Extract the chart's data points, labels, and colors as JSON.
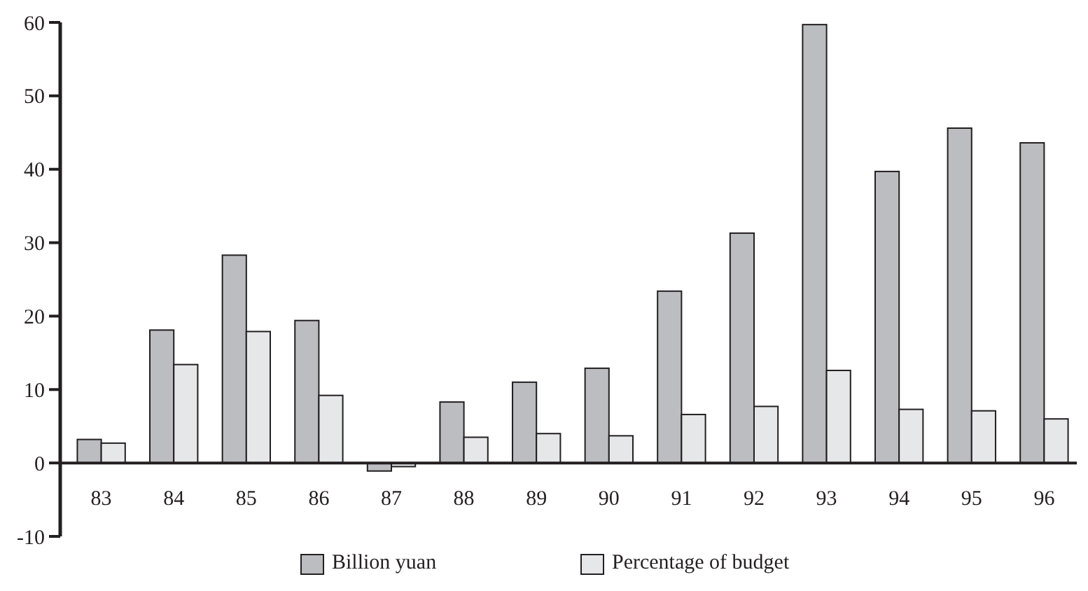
{
  "chart_data": {
    "type": "bar",
    "categories": [
      "83",
      "84",
      "85",
      "86",
      "87",
      "88",
      "89",
      "90",
      "91",
      "92",
      "93",
      "94",
      "95",
      "96"
    ],
    "series": [
      {
        "name": "Billion yuan",
        "color": "#bcbdc1",
        "values": [
          3.2,
          18.1,
          28.3,
          19.4,
          -1.1,
          8.3,
          11.0,
          12.9,
          23.4,
          31.3,
          59.7,
          39.7,
          45.6,
          43.6
        ]
      },
      {
        "name": "Percentage of budget",
        "color": "#e6e7e9",
        "values": [
          2.7,
          13.4,
          17.9,
          9.2,
          -0.5,
          3.5,
          4.0,
          3.7,
          6.6,
          7.7,
          12.6,
          7.3,
          7.1,
          6.0
        ]
      }
    ],
    "ylim": [
      -10,
      60
    ],
    "yticks": [
      -10,
      0,
      10,
      20,
      30,
      40,
      50,
      60
    ],
    "grid": false,
    "legend": "bottom"
  }
}
